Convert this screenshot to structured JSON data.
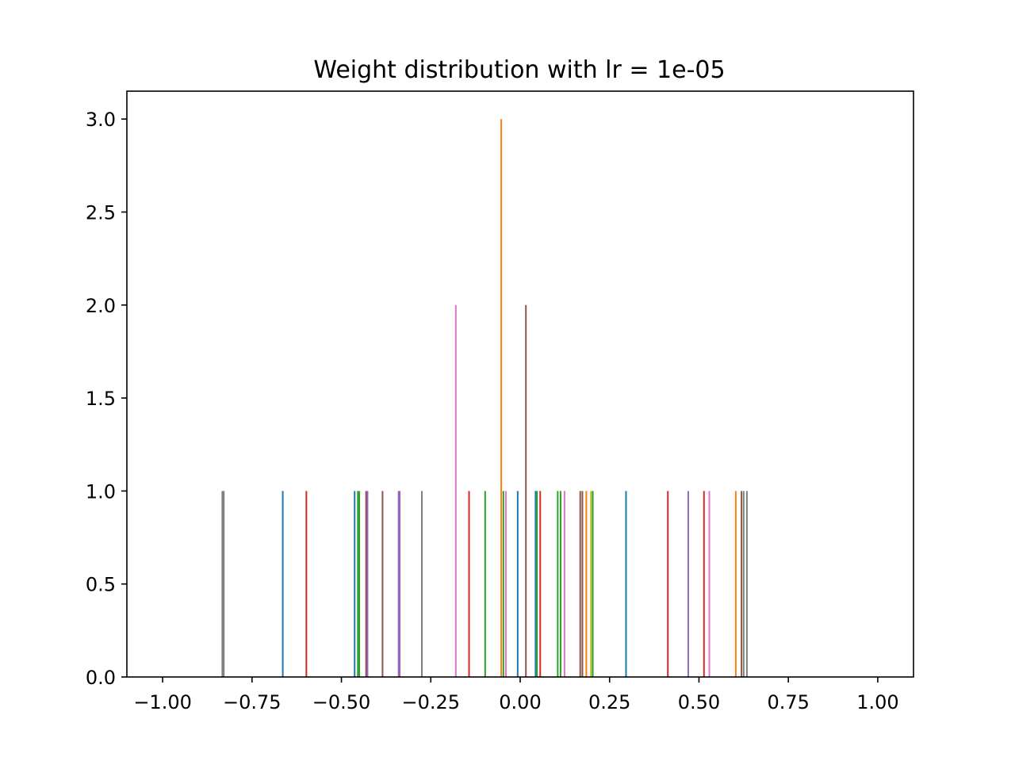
{
  "chart_data": {
    "type": "bar",
    "title": "Weight distribution with lr = 1e-05",
    "xlabel": "",
    "ylabel": "",
    "xlim": [
      -1.1,
      1.1
    ],
    "ylim": [
      0,
      3.15
    ],
    "x_ticks": [
      -1.0,
      -0.75,
      -0.5,
      -0.25,
      0.0,
      0.25,
      0.5,
      0.75,
      1.0
    ],
    "x_tick_labels": [
      "−1.00",
      "−0.75",
      "−0.50",
      "−0.25",
      "0.00",
      "0.25",
      "0.50",
      "0.75",
      "1.00"
    ],
    "y_ticks": [
      0.0,
      0.5,
      1.0,
      1.5,
      2.0,
      2.5,
      3.0
    ],
    "y_tick_labels": [
      "0.0",
      "0.5",
      "1.0",
      "1.5",
      "2.0",
      "2.5",
      "3.0"
    ],
    "grid": false,
    "legend": "none",
    "bars": [
      {
        "x": -0.833,
        "count": 1,
        "color": "#7f7f7f"
      },
      {
        "x": -0.829,
        "count": 1,
        "color": "#7f7f7f"
      },
      {
        "x": -0.664,
        "count": 1,
        "color": "#1f77b4"
      },
      {
        "x": -0.598,
        "count": 1,
        "color": "#d62728"
      },
      {
        "x": -0.463,
        "count": 1,
        "color": "#1f77b4"
      },
      {
        "x": -0.454,
        "count": 1,
        "color": "#2ca02c"
      },
      {
        "x": -0.45,
        "count": 1,
        "color": "#2ca02c"
      },
      {
        "x": -0.431,
        "count": 1,
        "color": "#8c564b"
      },
      {
        "x": -0.427,
        "count": 1,
        "color": "#9467bd"
      },
      {
        "x": -0.385,
        "count": 1,
        "color": "#8c564b"
      },
      {
        "x": -0.34,
        "count": 1,
        "color": "#9467bd"
      },
      {
        "x": -0.337,
        "count": 1,
        "color": "#9467bd"
      },
      {
        "x": -0.275,
        "count": 1,
        "color": "#7f7f7f"
      },
      {
        "x": -0.18,
        "count": 2,
        "color": "#e377c2"
      },
      {
        "x": -0.143,
        "count": 1,
        "color": "#d62728"
      },
      {
        "x": -0.098,
        "count": 1,
        "color": "#2ca02c"
      },
      {
        "x": -0.053,
        "count": 3,
        "color": "#ff7f0e"
      },
      {
        "x": -0.047,
        "count": 1,
        "color": "#2ca02c"
      },
      {
        "x": -0.04,
        "count": 1,
        "color": "#e377c2"
      },
      {
        "x": -0.007,
        "count": 1,
        "color": "#1f77b4"
      },
      {
        "x": 0.016,
        "count": 2,
        "color": "#8c564b"
      },
      {
        "x": 0.043,
        "count": 1,
        "color": "#1f77b4"
      },
      {
        "x": 0.047,
        "count": 1,
        "color": "#2ca02c"
      },
      {
        "x": 0.056,
        "count": 1,
        "color": "#d62728"
      },
      {
        "x": 0.105,
        "count": 1,
        "color": "#2ca02c"
      },
      {
        "x": 0.113,
        "count": 1,
        "color": "#2ca02c"
      },
      {
        "x": 0.124,
        "count": 1,
        "color": "#e377c2"
      },
      {
        "x": 0.168,
        "count": 1,
        "color": "#8c564b"
      },
      {
        "x": 0.174,
        "count": 1,
        "color": "#8c564b"
      },
      {
        "x": 0.185,
        "count": 1,
        "color": "#ff7f0e"
      },
      {
        "x": 0.198,
        "count": 1,
        "color": "#bcbd22"
      },
      {
        "x": 0.203,
        "count": 1,
        "color": "#2ca02c"
      },
      {
        "x": 0.296,
        "count": 1,
        "color": "#1f77b4"
      },
      {
        "x": 0.413,
        "count": 1,
        "color": "#d62728"
      },
      {
        "x": 0.47,
        "count": 1,
        "color": "#9467bd"
      },
      {
        "x": 0.514,
        "count": 1,
        "color": "#d62728"
      },
      {
        "x": 0.529,
        "count": 1,
        "color": "#e377c2"
      },
      {
        "x": 0.603,
        "count": 1,
        "color": "#ff7f0e"
      },
      {
        "x": 0.619,
        "count": 1,
        "color": "#8c564b"
      },
      {
        "x": 0.625,
        "count": 1,
        "color": "#7f7f7f"
      },
      {
        "x": 0.634,
        "count": 1,
        "color": "#7f7f7f"
      }
    ]
  }
}
